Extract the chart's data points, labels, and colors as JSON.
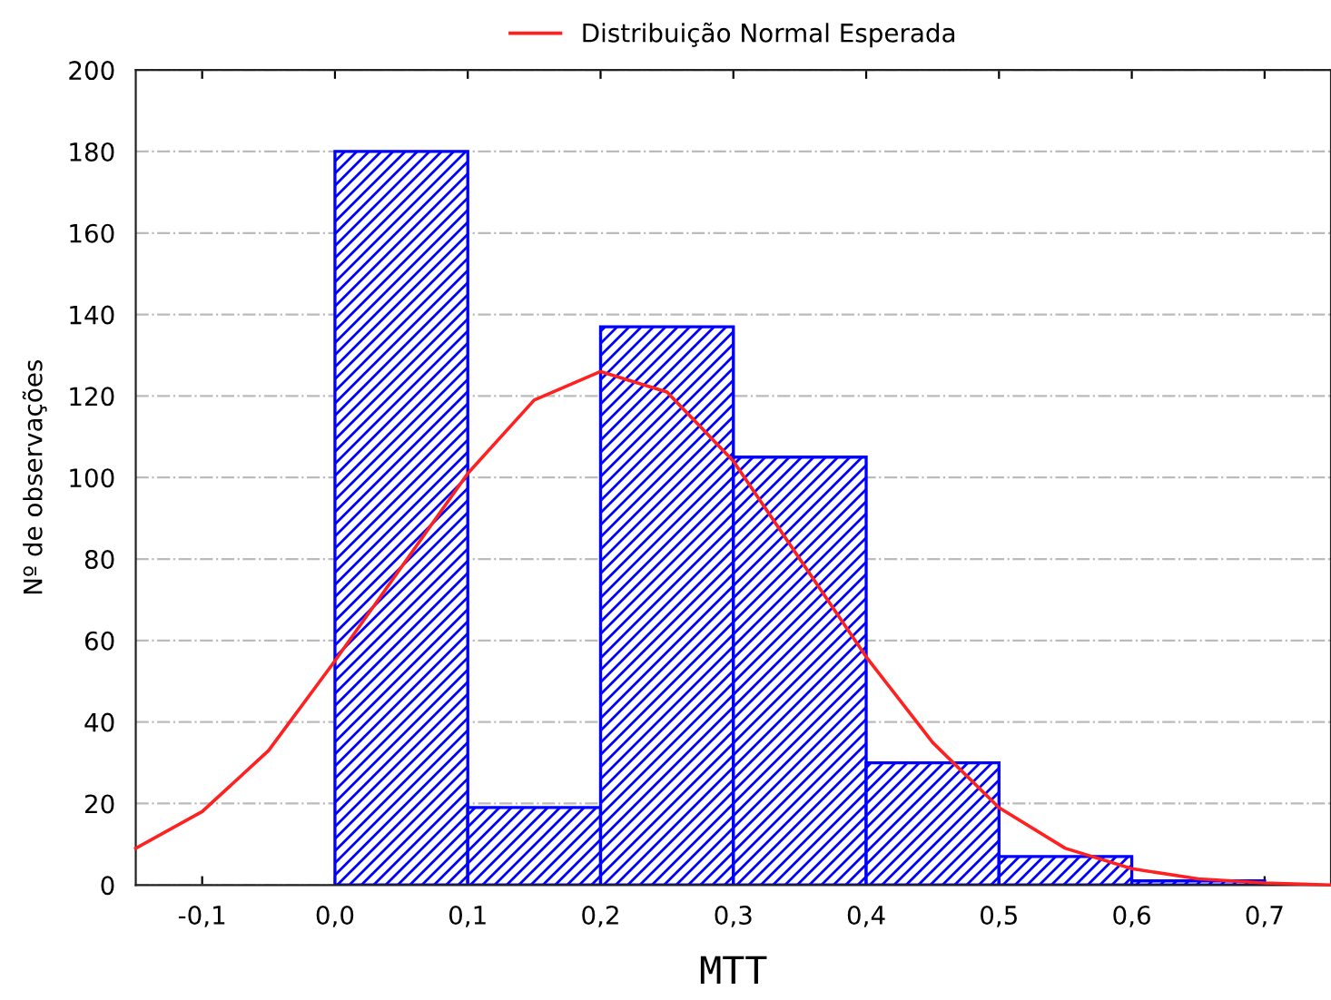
{
  "chart_data": {
    "type": "histogram",
    "xlabel": "MTT",
    "ylabel": "Nº de observações",
    "series": [
      {
        "type": "histogram",
        "color": "#0000ff",
        "bins": [
          0.0,
          0.1,
          0.2,
          0.3,
          0.4,
          0.5,
          0.6,
          0.7
        ],
        "values": [
          180,
          19,
          137,
          105,
          30,
          7,
          1
        ]
      },
      {
        "type": "line",
        "name": "Distribuição Normal Esperada",
        "color": "#ff2020",
        "x": [
          -0.15,
          -0.1,
          -0.05,
          0.0,
          0.05,
          0.1,
          0.15,
          0.2,
          0.25,
          0.3,
          0.35,
          0.4,
          0.45,
          0.5,
          0.55,
          0.6,
          0.65,
          0.7,
          0.75
        ],
        "values": [
          9,
          18,
          33,
          55,
          78,
          101,
          119,
          126,
          121,
          104,
          80,
          56,
          35,
          19,
          9,
          4,
          1.5,
          0.5,
          0
        ]
      }
    ],
    "xlim": [
      -0.15,
      0.75
    ],
    "ylim": [
      0,
      200
    ],
    "xticks": [
      {
        "value": -0.1,
        "label": "-0,1"
      },
      {
        "value": 0.0,
        "label": "0,0"
      },
      {
        "value": 0.1,
        "label": "0,1"
      },
      {
        "value": 0.2,
        "label": "0,2"
      },
      {
        "value": 0.3,
        "label": "0,3"
      },
      {
        "value": 0.4,
        "label": "0,4"
      },
      {
        "value": 0.5,
        "label": "0,5"
      },
      {
        "value": 0.6,
        "label": "0,6"
      },
      {
        "value": 0.7,
        "label": "0,7"
      }
    ],
    "yticks": [
      0,
      20,
      40,
      60,
      80,
      100,
      120,
      140,
      160,
      180,
      200
    ],
    "grid": "y",
    "legend": "top",
    "marker": "none",
    "line_style": "solid"
  }
}
